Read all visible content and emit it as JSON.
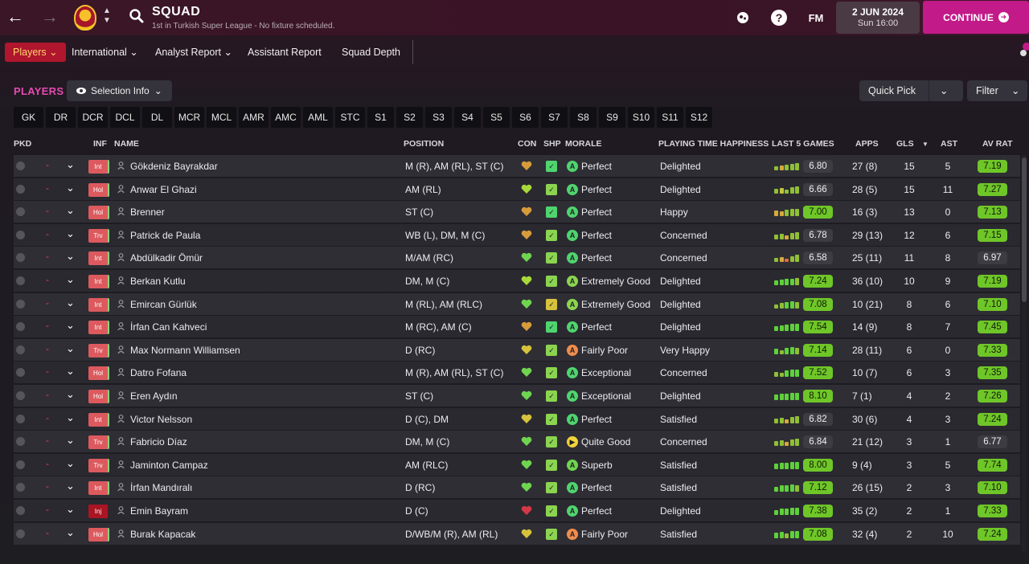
{
  "header": {
    "title": "SQUAD",
    "subtitle": "1st in Turkish Super League - No fixture scheduled.",
    "date_main": "2 JUN 2024",
    "date_sub": "Sun 16:00",
    "continue_label": "CONTINUE",
    "fm_label": "FM",
    "help_label": "?"
  },
  "subnav": {
    "players": "Players",
    "international": "International",
    "analyst": "Analyst Report",
    "assistant": "Assistant Report",
    "depth": "Squad Depth"
  },
  "toolbar": {
    "players_label": "PLAYERS",
    "selection_info": "Selection Info",
    "quick_pick": "Quick Pick",
    "filter": "Filter"
  },
  "position_tabs": [
    "GK",
    "DR",
    "DCR",
    "DCL",
    "DL",
    "MCR",
    "MCL",
    "AMR",
    "AMC",
    "AML",
    "STC",
    "S1",
    "S2",
    "S3",
    "S4",
    "S5",
    "S6",
    "S7",
    "S8",
    "S9",
    "S10",
    "S11",
    "S12"
  ],
  "columns": {
    "pkd": "PKD",
    "inf": "INF",
    "name": "NAME",
    "position": "POSITION",
    "con": "CON",
    "shp": "SHP",
    "morale": "MORALE",
    "pth": "PLAYING TIME HAPPINESS",
    "last5": "LAST 5 GAMES",
    "apps": "APPS",
    "gls": "GLS",
    "ast": "AST",
    "avrat": "AV RAT"
  },
  "players": [
    {
      "inf": "Int",
      "name": "Gökdeniz Bayrakdar",
      "position": "M (R), AM (RL), ST (C)",
      "morale": "Perfect",
      "pth": "Delighted",
      "last5": "6.80",
      "apps": "27 (8)",
      "gls": "15",
      "ast": "5",
      "avrat": "7.19"
    },
    {
      "inf": "Hol",
      "name": "Anwar El Ghazi",
      "position": "AM (RL)",
      "morale": "Perfect",
      "pth": "Delighted",
      "last5": "6.66",
      "apps": "28 (5)",
      "gls": "15",
      "ast": "11",
      "avrat": "7.27"
    },
    {
      "inf": "Hol",
      "name": "Brenner",
      "position": "ST (C)",
      "morale": "Perfect",
      "pth": "Happy",
      "last5": "7.00",
      "apps": "16 (3)",
      "gls": "13",
      "ast": "0",
      "avrat": "7.13"
    },
    {
      "inf": "Trv",
      "name": "Patrick de Paula",
      "position": "WB (L), DM, M (C)",
      "morale": "Perfect",
      "pth": "Concerned",
      "last5": "6.78",
      "apps": "29 (13)",
      "gls": "12",
      "ast": "6",
      "avrat": "7.15"
    },
    {
      "inf": "Int",
      "name": "Abdülkadir Ömür",
      "position": "M/AM (RC)",
      "morale": "Perfect",
      "pth": "Concerned",
      "last5": "6.58",
      "apps": "25 (11)",
      "gls": "11",
      "ast": "8",
      "avrat": "6.97"
    },
    {
      "inf": "Int",
      "name": "Berkan Kutlu",
      "position": "DM, M (C)",
      "morale": "Extremely Good",
      "pth": "Delighted",
      "last5": "7.24",
      "apps": "36 (10)",
      "gls": "10",
      "ast": "9",
      "avrat": "7.19"
    },
    {
      "inf": "Int",
      "name": "Emircan Gürlük",
      "position": "M (RL), AM (RLC)",
      "morale": "Extremely Good",
      "pth": "Delighted",
      "last5": "7.08",
      "apps": "10 (21)",
      "gls": "8",
      "ast": "6",
      "avrat": "7.10"
    },
    {
      "inf": "Int",
      "name": "İrfan Can Kahveci",
      "position": "M (RC), AM (C)",
      "morale": "Perfect",
      "pth": "Delighted",
      "last5": "7.54",
      "apps": "14 (9)",
      "gls": "8",
      "ast": "7",
      "avrat": "7.45"
    },
    {
      "inf": "Trv",
      "name": "Max Normann Williamsen",
      "position": "D (RC)",
      "morale": "Fairly Poor",
      "pth": "Very Happy",
      "last5": "7.14",
      "apps": "28 (11)",
      "gls": "6",
      "ast": "0",
      "avrat": "7.33"
    },
    {
      "inf": "Hol",
      "name": "Datro Fofana",
      "position": "M (R), AM (RL), ST (C)",
      "morale": "Exceptional",
      "pth": "Concerned",
      "last5": "7.52",
      "apps": "10 (7)",
      "gls": "6",
      "ast": "3",
      "avrat": "7.35"
    },
    {
      "inf": "Hol",
      "name": "Eren Aydın",
      "position": "ST (C)",
      "morale": "Exceptional",
      "pth": "Delighted",
      "last5": "8.10",
      "apps": "7 (1)",
      "gls": "4",
      "ast": "2",
      "avrat": "7.26"
    },
    {
      "inf": "Int",
      "name": "Victor Nelsson",
      "position": "D (C), DM",
      "morale": "Perfect",
      "pth": "Satisfied",
      "last5": "6.82",
      "apps": "30 (6)",
      "gls": "4",
      "ast": "3",
      "avrat": "7.24"
    },
    {
      "inf": "Trv",
      "name": "Fabricio Díaz",
      "position": "DM, M (C)",
      "morale": "Quite Good",
      "pth": "Concerned",
      "last5": "6.84",
      "apps": "21 (12)",
      "gls": "3",
      "ast": "1",
      "avrat": "6.77"
    },
    {
      "inf": "Trv",
      "name": "Jaminton Campaz",
      "position": "AM (RLC)",
      "morale": "Superb",
      "pth": "Satisfied",
      "last5": "8.00",
      "apps": "9 (4)",
      "gls": "3",
      "ast": "5",
      "avrat": "7.74"
    },
    {
      "inf": "Int",
      "name": "İrfan Mandıralı",
      "position": "D (RC)",
      "morale": "Perfect",
      "pth": "Satisfied",
      "last5": "7.12",
      "apps": "26 (15)",
      "gls": "2",
      "ast": "3",
      "avrat": "7.10"
    },
    {
      "inf": "Inj",
      "name": "Emin Bayram",
      "position": "D (C)",
      "morale": "Perfect",
      "pth": "Delighted",
      "last5": "7.38",
      "apps": "35 (2)",
      "gls": "2",
      "ast": "1",
      "avrat": "7.33"
    },
    {
      "inf": "Hol",
      "name": "Burak Kapacak",
      "position": "D/WB/M (R), AM (RL)",
      "morale": "Fairly Poor",
      "pth": "Satisfied",
      "last5": "7.08",
      "apps": "32 (4)",
      "gls": "2",
      "ast": "10",
      "avrat": "7.24"
    }
  ],
  "colors": {
    "accent": "#c21a88",
    "good": "#6fc628",
    "bad": "#e24350"
  }
}
